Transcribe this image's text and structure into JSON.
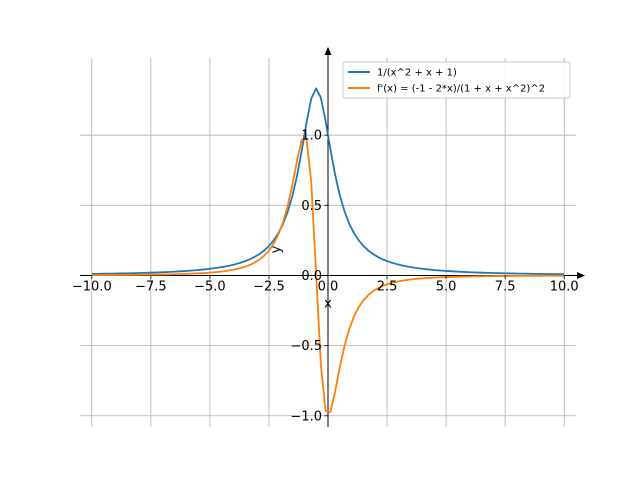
{
  "chart_data": {
    "type": "line",
    "xlabel": "x",
    "ylabel": "y",
    "xlim": [
      -10.5,
      10.5
    ],
    "ylim": [
      -1.08,
      1.55
    ],
    "grid": true,
    "legend_position": "top-right",
    "xticks": [
      -10.0,
      -7.5,
      -5.0,
      -2.5,
      0.0,
      2.5,
      5.0,
      7.5,
      10.0
    ],
    "xtick_labels": [
      "−10.0",
      "−7.5",
      "−5.0",
      "−2.5",
      "0.0",
      "2.5",
      "5.0",
      "7.5",
      "10.0"
    ],
    "yticks": [
      -1.0,
      -0.5,
      0.0,
      0.5,
      1.0
    ],
    "ytick_labels": [
      "−1.0",
      "−0.5",
      "0.0",
      "0.5",
      "1.0"
    ],
    "x_domain": [
      -10,
      10
    ],
    "sample_count": 100,
    "series": [
      {
        "name": "1/(x^2 + x + 1)",
        "expression": "1/(x^2 + x + 1)",
        "color": "#1f77b4"
      },
      {
        "name": "f'(x) = (-1 - 2*x)/(1 + x + x^2)^2",
        "expression": "(-1 - 2*x)/(1 + x + x^2)^2",
        "color": "#ff7f0e"
      }
    ]
  }
}
